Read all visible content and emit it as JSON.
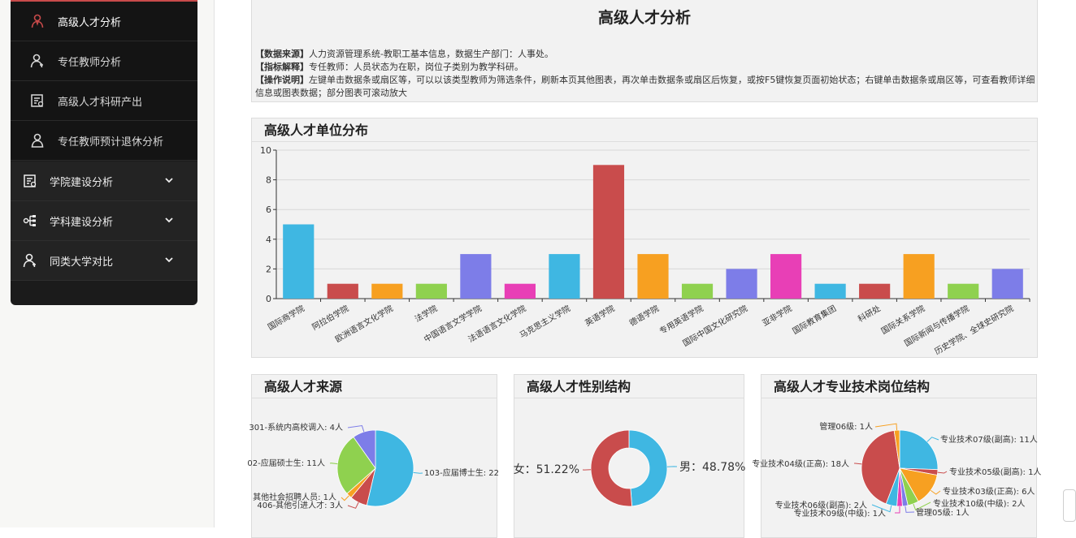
{
  "sidebar": {
    "sub_items": [
      {
        "label": "高级人才分析",
        "icon": "user-icon",
        "active": true
      },
      {
        "label": "专任教师分析",
        "icon": "teacher-icon"
      },
      {
        "label": "高级人才科研产出",
        "icon": "report-icon"
      },
      {
        "label": "专任教师预计退休分析",
        "icon": "user-icon"
      }
    ],
    "main_items": [
      {
        "label": "学院建设分析",
        "icon": "report-icon"
      },
      {
        "label": "学科建设分析",
        "icon": "hierarchy-icon"
      },
      {
        "label": "同类大学对比",
        "icon": "teacher-icon"
      }
    ],
    "accent_color": "#c84a4a"
  },
  "info": {
    "title": "高级人才分析",
    "source_label": "【数据来源】",
    "source_text": "人力资源管理系统-教职工基本信息，数据生产部门：人事处。",
    "metric_label": "【指标解释】",
    "metric_text": "专任教师：人员状态为在职，岗位子类别为教学科研。",
    "op_label": "【操作说明】",
    "op_text": "左键单击数据条或扇区等，可以以该类型教师为筛选条件，刷新本页其他图表，再次单击数据条或扇区后恢复，或按F5键恢复页面初始状态；右键单击数据条或扇区等，可查看教师详细信息或图表数据；部分图表可滚动放大"
  },
  "chart_data": [
    {
      "type": "bar",
      "title": "高级人才单位分布",
      "categories": [
        "国际商学院",
        "阿拉伯学院",
        "欧洲语言文化学院",
        "法学院",
        "中国语言文学学院",
        "法语语言文化学院",
        "马克思主义学院",
        "英语学院",
        "德语学院",
        "专用英语学院",
        "国际中国文化研究院",
        "亚非学院",
        "国际教育集团",
        "科研处",
        "国际关系学院",
        "国际新闻与传播学院",
        "历史学院、全球史研究院"
      ],
      "values": [
        5,
        1,
        1,
        1,
        3,
        1,
        3,
        9,
        3,
        1,
        2,
        3,
        1,
        1,
        3,
        1,
        2
      ],
      "colors": [
        "#3fb7e2",
        "#c94c4c",
        "#f7a021",
        "#8fd14f",
        "#7d7de8",
        "#e83fb6",
        "#3fb7e2",
        "#c94c4c",
        "#f7a021",
        "#8fd14f",
        "#7d7de8",
        "#e83fb6",
        "#3fb7e2",
        "#c94c4c",
        "#f7a021",
        "#8fd14f",
        "#7d7de8"
      ],
      "ylim": [
        0,
        10
      ],
      "yticks": [
        0,
        2,
        4,
        6,
        8,
        10
      ]
    },
    {
      "type": "pie",
      "title": "高级人才来源",
      "slices": [
        {
          "label": "103-应届博士生: 22",
          "value": 22,
          "color": "#3fb7e2"
        },
        {
          "label": "406-其他引进人才: 3人",
          "value": 3,
          "color": "#c94c4c"
        },
        {
          "label": "其他社会招聘人员: 1人",
          "value": 1,
          "color": "#f7a021"
        },
        {
          "label": "02-应届硕士生: 11人",
          "value": 11,
          "color": "#8fd14f"
        },
        {
          "label": "301-系统内高校调入: 4人",
          "value": 4,
          "color": "#7d7de8"
        }
      ]
    },
    {
      "type": "pie",
      "title": "高级人才性别结构",
      "slices": [
        {
          "label": "男：48.78%",
          "value": 48.78,
          "color": "#3fb7e2"
        },
        {
          "label": "女：51.22%",
          "value": 51.22,
          "color": "#c94c4c"
        }
      ]
    },
    {
      "type": "pie",
      "title": "高级人才专业技术岗位结构",
      "slices": [
        {
          "label": "专业技术07级(副高): 11人",
          "value": 11,
          "color": "#3fb7e2"
        },
        {
          "label": "专业技术05级(副高): 1人",
          "value": 1,
          "color": "#c94c4c"
        },
        {
          "label": "专业技术03级(正高): 6人",
          "value": 6,
          "color": "#f7a021"
        },
        {
          "label": "专业技术10级(中级): 2人",
          "value": 2,
          "color": "#8fd14f"
        },
        {
          "label": "管理05级: 1人",
          "value": 1,
          "color": "#7d7de8"
        },
        {
          "label": "专业技术09级(中级): 1人",
          "value": 1,
          "color": "#e83fb6"
        },
        {
          "label": "专业技术06级(副高): 2人",
          "value": 2,
          "color": "#3fb7e2"
        },
        {
          "label": "专业技术04级(正高): 18人",
          "value": 18,
          "color": "#c94c4c"
        },
        {
          "label": "管理06级: 1人",
          "value": 1,
          "color": "#f7a021"
        }
      ]
    }
  ]
}
